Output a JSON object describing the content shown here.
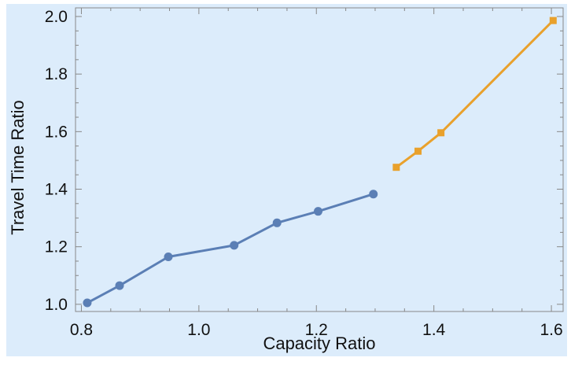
{
  "chart_data": {
    "type": "line",
    "xlabel": "Capacity Ratio",
    "ylabel": "Travel Time Ratio",
    "xlim": [
      0.79,
      1.62
    ],
    "ylim": [
      0.975,
      2.03
    ],
    "x_ticks": [
      {
        "value": 0.8,
        "label": "0.8"
      },
      {
        "value": 1.0,
        "label": "1.0"
      },
      {
        "value": 1.2,
        "label": "1.2"
      },
      {
        "value": 1.4,
        "label": "1.4"
      },
      {
        "value": 1.6,
        "label": "1.6"
      }
    ],
    "y_ticks": [
      {
        "value": 1.0,
        "label": "1.0"
      },
      {
        "value": 1.2,
        "label": "1.2"
      },
      {
        "value": 1.4,
        "label": "1.4"
      },
      {
        "value": 1.6,
        "label": "1.6"
      },
      {
        "value": 1.8,
        "label": "1.8"
      },
      {
        "value": 2.0,
        "label": "2.0"
      }
    ],
    "grid": false,
    "legend": "none",
    "background_color": "#dcecfb",
    "frame_color": "#888888",
    "series": [
      {
        "color": "#5b7fb5",
        "marker": "circle",
        "x": [
          0.81,
          0.865,
          0.948,
          1.06,
          1.133,
          1.203,
          1.297
        ],
        "y": [
          1.005,
          1.065,
          1.165,
          1.205,
          1.283,
          1.323,
          1.383
        ]
      },
      {
        "color": "#e9a12c",
        "marker": "square",
        "x": [
          1.336,
          1.373,
          1.412,
          1.603
        ],
        "y": [
          1.476,
          1.532,
          1.596,
          1.986
        ]
      }
    ]
  }
}
